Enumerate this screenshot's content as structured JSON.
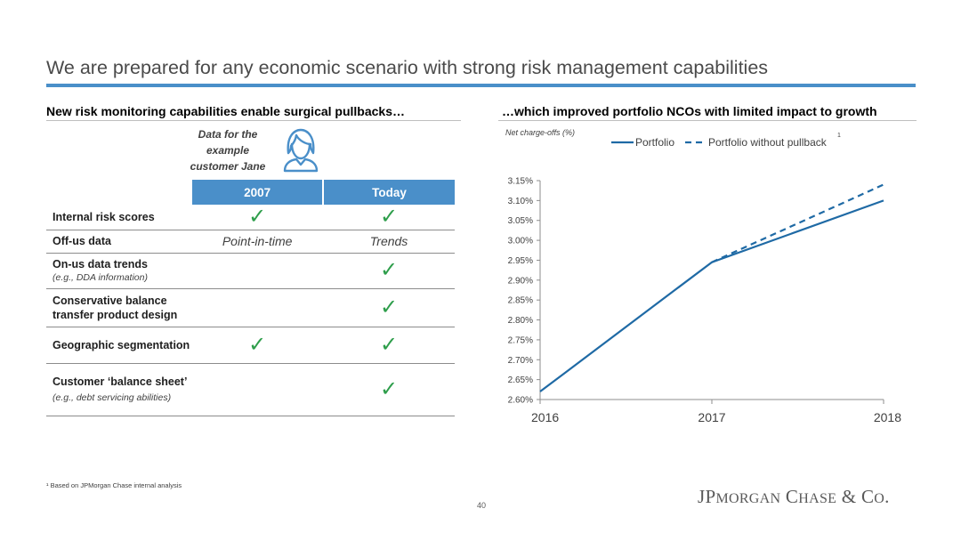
{
  "page": {
    "title": "We are prepared for any economic scenario with strong risk management capabilities",
    "accent_color": "#4a8fc9",
    "footnote": "¹ Based on JPMorgan Chase internal analysis",
    "page_number": "40",
    "brand_main": "JPMorgan Chase & Co."
  },
  "left": {
    "heading": "New risk monitoring capabilities enable surgical pullbacks…",
    "example_label": "Data for the example customer Jane",
    "example_icon": "person-icon",
    "table": {
      "header_color": "#4a8fc9",
      "columns": [
        "2007",
        "Today"
      ],
      "rows": [
        {
          "label": "Internal risk scores",
          "note": "",
          "c2007": "✓",
          "today": "✓"
        },
        {
          "label": "Off-us data",
          "note": "",
          "c2007": "Point-in-time",
          "today": "Trends"
        },
        {
          "label": "On-us data trends",
          "note": "(e.g., DDA information)",
          "c2007": "",
          "today": "✓"
        },
        {
          "label": "Conservative balance transfer product design",
          "note": "",
          "c2007": "",
          "today": "✓"
        },
        {
          "label": "Geographic segmentation",
          "note": "",
          "c2007": "✓",
          "today": "✓"
        },
        {
          "label": "Customer ‘balance sheet’",
          "note": "(e.g., debt servicing abilities)",
          "c2007": "",
          "today": "✓"
        }
      ]
    }
  },
  "right": {
    "heading": "…which improved portfolio NCOs with limited impact to growth"
  },
  "chart_data": {
    "type": "line",
    "title": "",
    "ylabel": "Net charge-offs (%)",
    "xlabel": "",
    "x": [
      "2016",
      "2017",
      "2018"
    ],
    "ylim": [
      2.6,
      3.15
    ],
    "yticks": [
      "2.60%",
      "2.65%",
      "2.70%",
      "2.75%",
      "2.80%",
      "2.85%",
      "2.90%",
      "2.95%",
      "3.00%",
      "3.05%",
      "3.10%",
      "3.15%"
    ],
    "legend_position": "top",
    "legend_footnote_marker": "1",
    "grid": false,
    "line_color": "#1f6aa5",
    "series": [
      {
        "name": "Portfolio",
        "style": "solid",
        "values": [
          2.62,
          2.945,
          3.1
        ]
      },
      {
        "name": "Portfolio without pullback",
        "style": "dashed",
        "values": [
          null,
          2.945,
          3.14
        ]
      }
    ]
  }
}
